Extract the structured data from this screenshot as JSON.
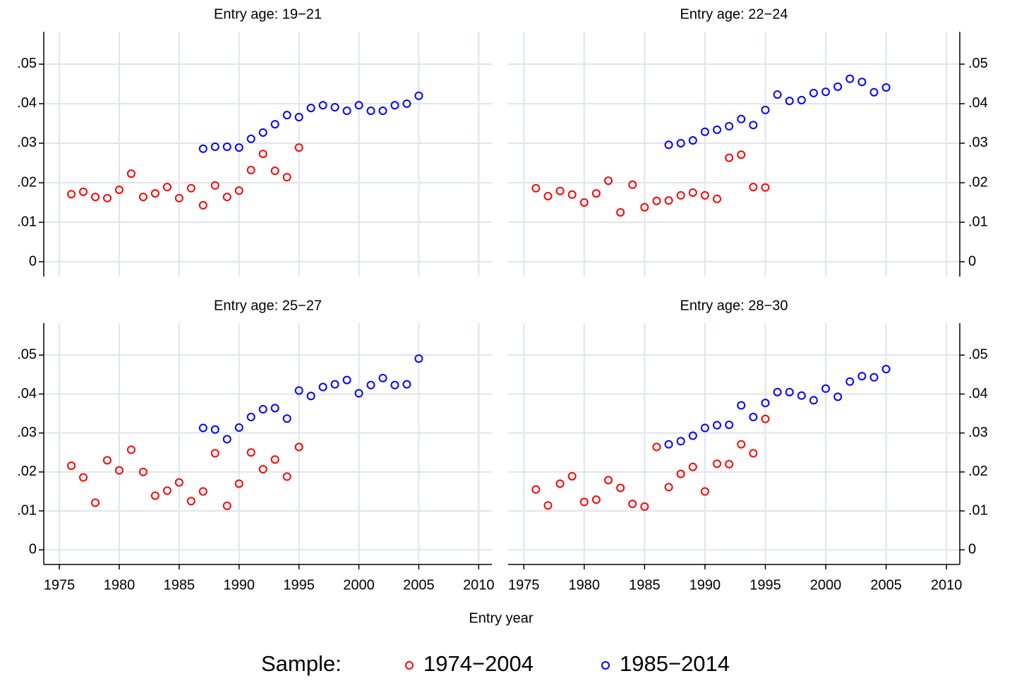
{
  "chart_data": [
    {
      "type": "scatter",
      "title": "Entry age: 19−21",
      "y_axis_side": "left",
      "xtick_labels": false,
      "x": [
        1976,
        1977,
        1978,
        1979,
        1980,
        1981,
        1982,
        1983,
        1984,
        1985,
        1986,
        1987,
        1988,
        1989,
        1990,
        1991,
        1992,
        1993,
        1994,
        1995,
        1996,
        1997,
        1998,
        1999,
        2000,
        2001,
        2002,
        2003,
        2004,
        2005
      ],
      "series": [
        {
          "color": "#ff0000",
          "values": [
            0.0171,
            0.0177,
            0.0164,
            0.0161,
            0.0182,
            0.0223,
            0.0164,
            0.0173,
            0.0189,
            0.0161,
            0.0186,
            0.0143,
            0.0193,
            0.0164,
            0.018,
            0.0232,
            0.0273,
            0.023,
            0.0214,
            0.0289,
            null,
            null,
            null,
            null,
            null,
            null,
            null,
            null,
            null,
            null
          ]
        },
        {
          "color": "#0000ff",
          "values": [
            null,
            null,
            null,
            null,
            null,
            null,
            null,
            null,
            null,
            null,
            null,
            0.0286,
            0.0291,
            0.0291,
            0.0289,
            0.0311,
            0.0327,
            0.0348,
            0.0371,
            0.0366,
            0.0389,
            0.0396,
            0.0391,
            0.0382,
            0.0396,
            0.0382,
            0.0382,
            0.0396,
            0.04,
            0.042
          ]
        }
      ],
      "xlim": [
        1973.7,
        2011.1
      ],
      "ylim": [
        -0.00375,
        0.0582
      ],
      "xticks": [
        1975,
        1980,
        1985,
        1990,
        1995,
        2000,
        2005,
        2010
      ],
      "yticks": [
        0,
        {
          "value": 0.01,
          "label": ".01"
        },
        {
          "value": 0.02,
          "label": ".02"
        },
        {
          "value": 0.03,
          "label": ".03"
        },
        {
          "value": 0.04,
          "label": ".04"
        },
        {
          "value": 0.05,
          "label": ".05"
        }
      ],
      "grid": true
    },
    {
      "type": "scatter",
      "title": "Entry age: 22−24",
      "y_axis_side": "right",
      "xtick_labels": false,
      "x": [
        1976,
        1977,
        1978,
        1979,
        1980,
        1981,
        1982,
        1983,
        1984,
        1985,
        1986,
        1987,
        1988,
        1989,
        1990,
        1991,
        1992,
        1993,
        1994,
        1995,
        1996,
        1997,
        1998,
        1999,
        2000,
        2001,
        2002,
        2003,
        2004,
        2005
      ],
      "series": [
        {
          "color": "#ff0000",
          "values": [
            0.0186,
            0.0166,
            0.0179,
            0.017,
            0.015,
            0.0173,
            0.0205,
            0.0125,
            0.0195,
            0.0138,
            0.0154,
            0.0155,
            0.0168,
            0.0175,
            0.0168,
            0.0159,
            0.0263,
            0.0271,
            0.0189,
            0.0188,
            null,
            null,
            null,
            null,
            null,
            null,
            null,
            null,
            null,
            null
          ]
        },
        {
          "color": "#0000ff",
          "values": [
            null,
            null,
            null,
            null,
            null,
            null,
            null,
            null,
            null,
            null,
            null,
            0.0296,
            0.03,
            0.0307,
            0.0329,
            0.0334,
            0.0343,
            0.0361,
            0.0346,
            0.0384,
            0.0423,
            0.0407,
            0.0409,
            0.0427,
            0.043,
            0.0443,
            0.0463,
            0.0455,
            0.0429,
            0.0441
          ]
        }
      ],
      "xlim": [
        1973.7,
        2011.1
      ],
      "ylim": [
        -0.00375,
        0.0582
      ],
      "xticks": [
        1975,
        1980,
        1985,
        1990,
        1995,
        2000,
        2005,
        2010
      ],
      "yticks": [
        0,
        {
          "value": 0.01,
          "label": ".01"
        },
        {
          "value": 0.02,
          "label": ".02"
        },
        {
          "value": 0.03,
          "label": ".03"
        },
        {
          "value": 0.04,
          "label": ".04"
        },
        {
          "value": 0.05,
          "label": ".05"
        }
      ],
      "grid": true
    },
    {
      "type": "scatter",
      "title": "Entry age: 25−27",
      "y_axis_side": "left",
      "xtick_labels": true,
      "x": [
        1976,
        1977,
        1978,
        1979,
        1980,
        1981,
        1982,
        1983,
        1984,
        1985,
        1986,
        1987,
        1988,
        1989,
        1990,
        1991,
        1992,
        1993,
        1994,
        1995,
        1996,
        1997,
        1998,
        1999,
        2000,
        2001,
        2002,
        2003,
        2004,
        2005
      ],
      "series": [
        {
          "color": "#ff0000",
          "values": [
            0.0216,
            0.0186,
            0.0121,
            0.023,
            0.0204,
            0.0257,
            0.02,
            0.0139,
            0.0152,
            0.0173,
            0.0125,
            0.015,
            0.0248,
            0.0113,
            0.017,
            0.025,
            0.0207,
            0.0232,
            0.0188,
            0.0264,
            null,
            null,
            null,
            null,
            null,
            null,
            null,
            null,
            null,
            null
          ]
        },
        {
          "color": "#0000ff",
          "values": [
            null,
            null,
            null,
            null,
            null,
            null,
            null,
            null,
            null,
            null,
            null,
            0.0313,
            0.0309,
            0.0284,
            0.0314,
            0.0341,
            0.0361,
            0.0364,
            0.0337,
            0.0409,
            0.0395,
            0.0418,
            0.0425,
            0.0436,
            0.0402,
            0.0423,
            0.0441,
            0.0423,
            0.0425,
            0.0491
          ]
        }
      ],
      "xlim": [
        1973.7,
        2011.1
      ],
      "ylim": [
        -0.00375,
        0.0582
      ],
      "xticks": [
        1975,
        1980,
        1985,
        1990,
        1995,
        2000,
        2005,
        2010
      ],
      "yticks": [
        0,
        {
          "value": 0.01,
          "label": ".01"
        },
        {
          "value": 0.02,
          "label": ".02"
        },
        {
          "value": 0.03,
          "label": ".03"
        },
        {
          "value": 0.04,
          "label": ".04"
        },
        {
          "value": 0.05,
          "label": ".05"
        }
      ],
      "grid": true
    },
    {
      "type": "scatter",
      "title": "Entry age: 28−30",
      "y_axis_side": "right",
      "xtick_labels": true,
      "x": [
        1976,
        1977,
        1978,
        1979,
        1980,
        1981,
        1982,
        1983,
        1984,
        1985,
        1986,
        1987,
        1988,
        1989,
        1990,
        1991,
        1992,
        1993,
        1994,
        1995,
        1996,
        1997,
        1998,
        1999,
        2000,
        2001,
        2002,
        2003,
        2004,
        2005
      ],
      "series": [
        {
          "color": "#ff0000",
          "values": [
            0.0155,
            0.0114,
            0.017,
            0.0189,
            0.0123,
            0.0129,
            0.0179,
            0.0159,
            0.0118,
            0.0111,
            0.0264,
            0.0161,
            0.0195,
            0.0213,
            0.015,
            0.0221,
            0.022,
            0.0271,
            0.0248,
            0.0336,
            null,
            null,
            null,
            null,
            null,
            null,
            null,
            null,
            null,
            null
          ]
        },
        {
          "color": "#0000ff",
          "values": [
            null,
            null,
            null,
            null,
            null,
            null,
            null,
            null,
            null,
            null,
            null,
            0.0271,
            0.0279,
            0.0293,
            0.0313,
            0.032,
            0.0321,
            0.0371,
            0.0341,
            0.0377,
            0.0405,
            0.0405,
            0.0396,
            0.0384,
            0.0414,
            0.0393,
            0.0432,
            0.0446,
            0.0443,
            0.0464
          ]
        }
      ],
      "xlim": [
        1973.7,
        2011.1
      ],
      "ylim": [
        -0.00375,
        0.0582
      ],
      "xticks": [
        1975,
        1980,
        1985,
        1990,
        1995,
        2000,
        2005,
        2010
      ],
      "yticks": [
        0,
        {
          "value": 0.01,
          "label": ".01"
        },
        {
          "value": 0.02,
          "label": ".02"
        },
        {
          "value": 0.03,
          "label": ".03"
        },
        {
          "value": 0.04,
          "label": ".04"
        },
        {
          "value": 0.05,
          "label": ".05"
        }
      ],
      "grid": true
    }
  ],
  "xlabel": "Entry year",
  "legend": {
    "title": "Sample:",
    "items": [
      {
        "name": "1974−2004",
        "color": "#ff0000"
      },
      {
        "name": "1985−2014",
        "color": "#0000ff"
      }
    ]
  }
}
